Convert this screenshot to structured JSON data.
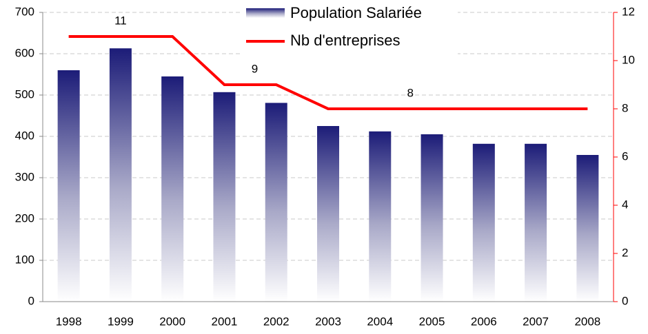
{
  "chart_data": {
    "type": "bar_line",
    "categories": [
      "1998",
      "1999",
      "2000",
      "2001",
      "2002",
      "2003",
      "2004",
      "2005",
      "2006",
      "2007",
      "2008"
    ],
    "series": [
      {
        "name": "Population Salariée",
        "type": "bar",
        "color": "#1c1c78",
        "values": [
          560,
          613,
          545,
          507,
          481,
          425,
          412,
          405,
          382,
          382,
          355
        ]
      },
      {
        "name": "Nb d'entreprises",
        "type": "line",
        "axis": "y2",
        "color": "#ff0000",
        "values": [
          11,
          11,
          11,
          9,
          9,
          8,
          8,
          8,
          8,
          8,
          8
        ],
        "value_labels": [
          null,
          "11",
          null,
          "9",
          null,
          null,
          "8",
          null,
          null,
          null,
          null
        ]
      }
    ],
    "ylim": [
      0,
      700
    ],
    "yticks": [
      0,
      100,
      200,
      300,
      400,
      500,
      600,
      700
    ],
    "y2lim": [
      0,
      12
    ],
    "y2ticks": [
      0,
      2,
      4,
      6,
      8,
      10,
      12
    ],
    "grid": true,
    "legend": "top"
  }
}
